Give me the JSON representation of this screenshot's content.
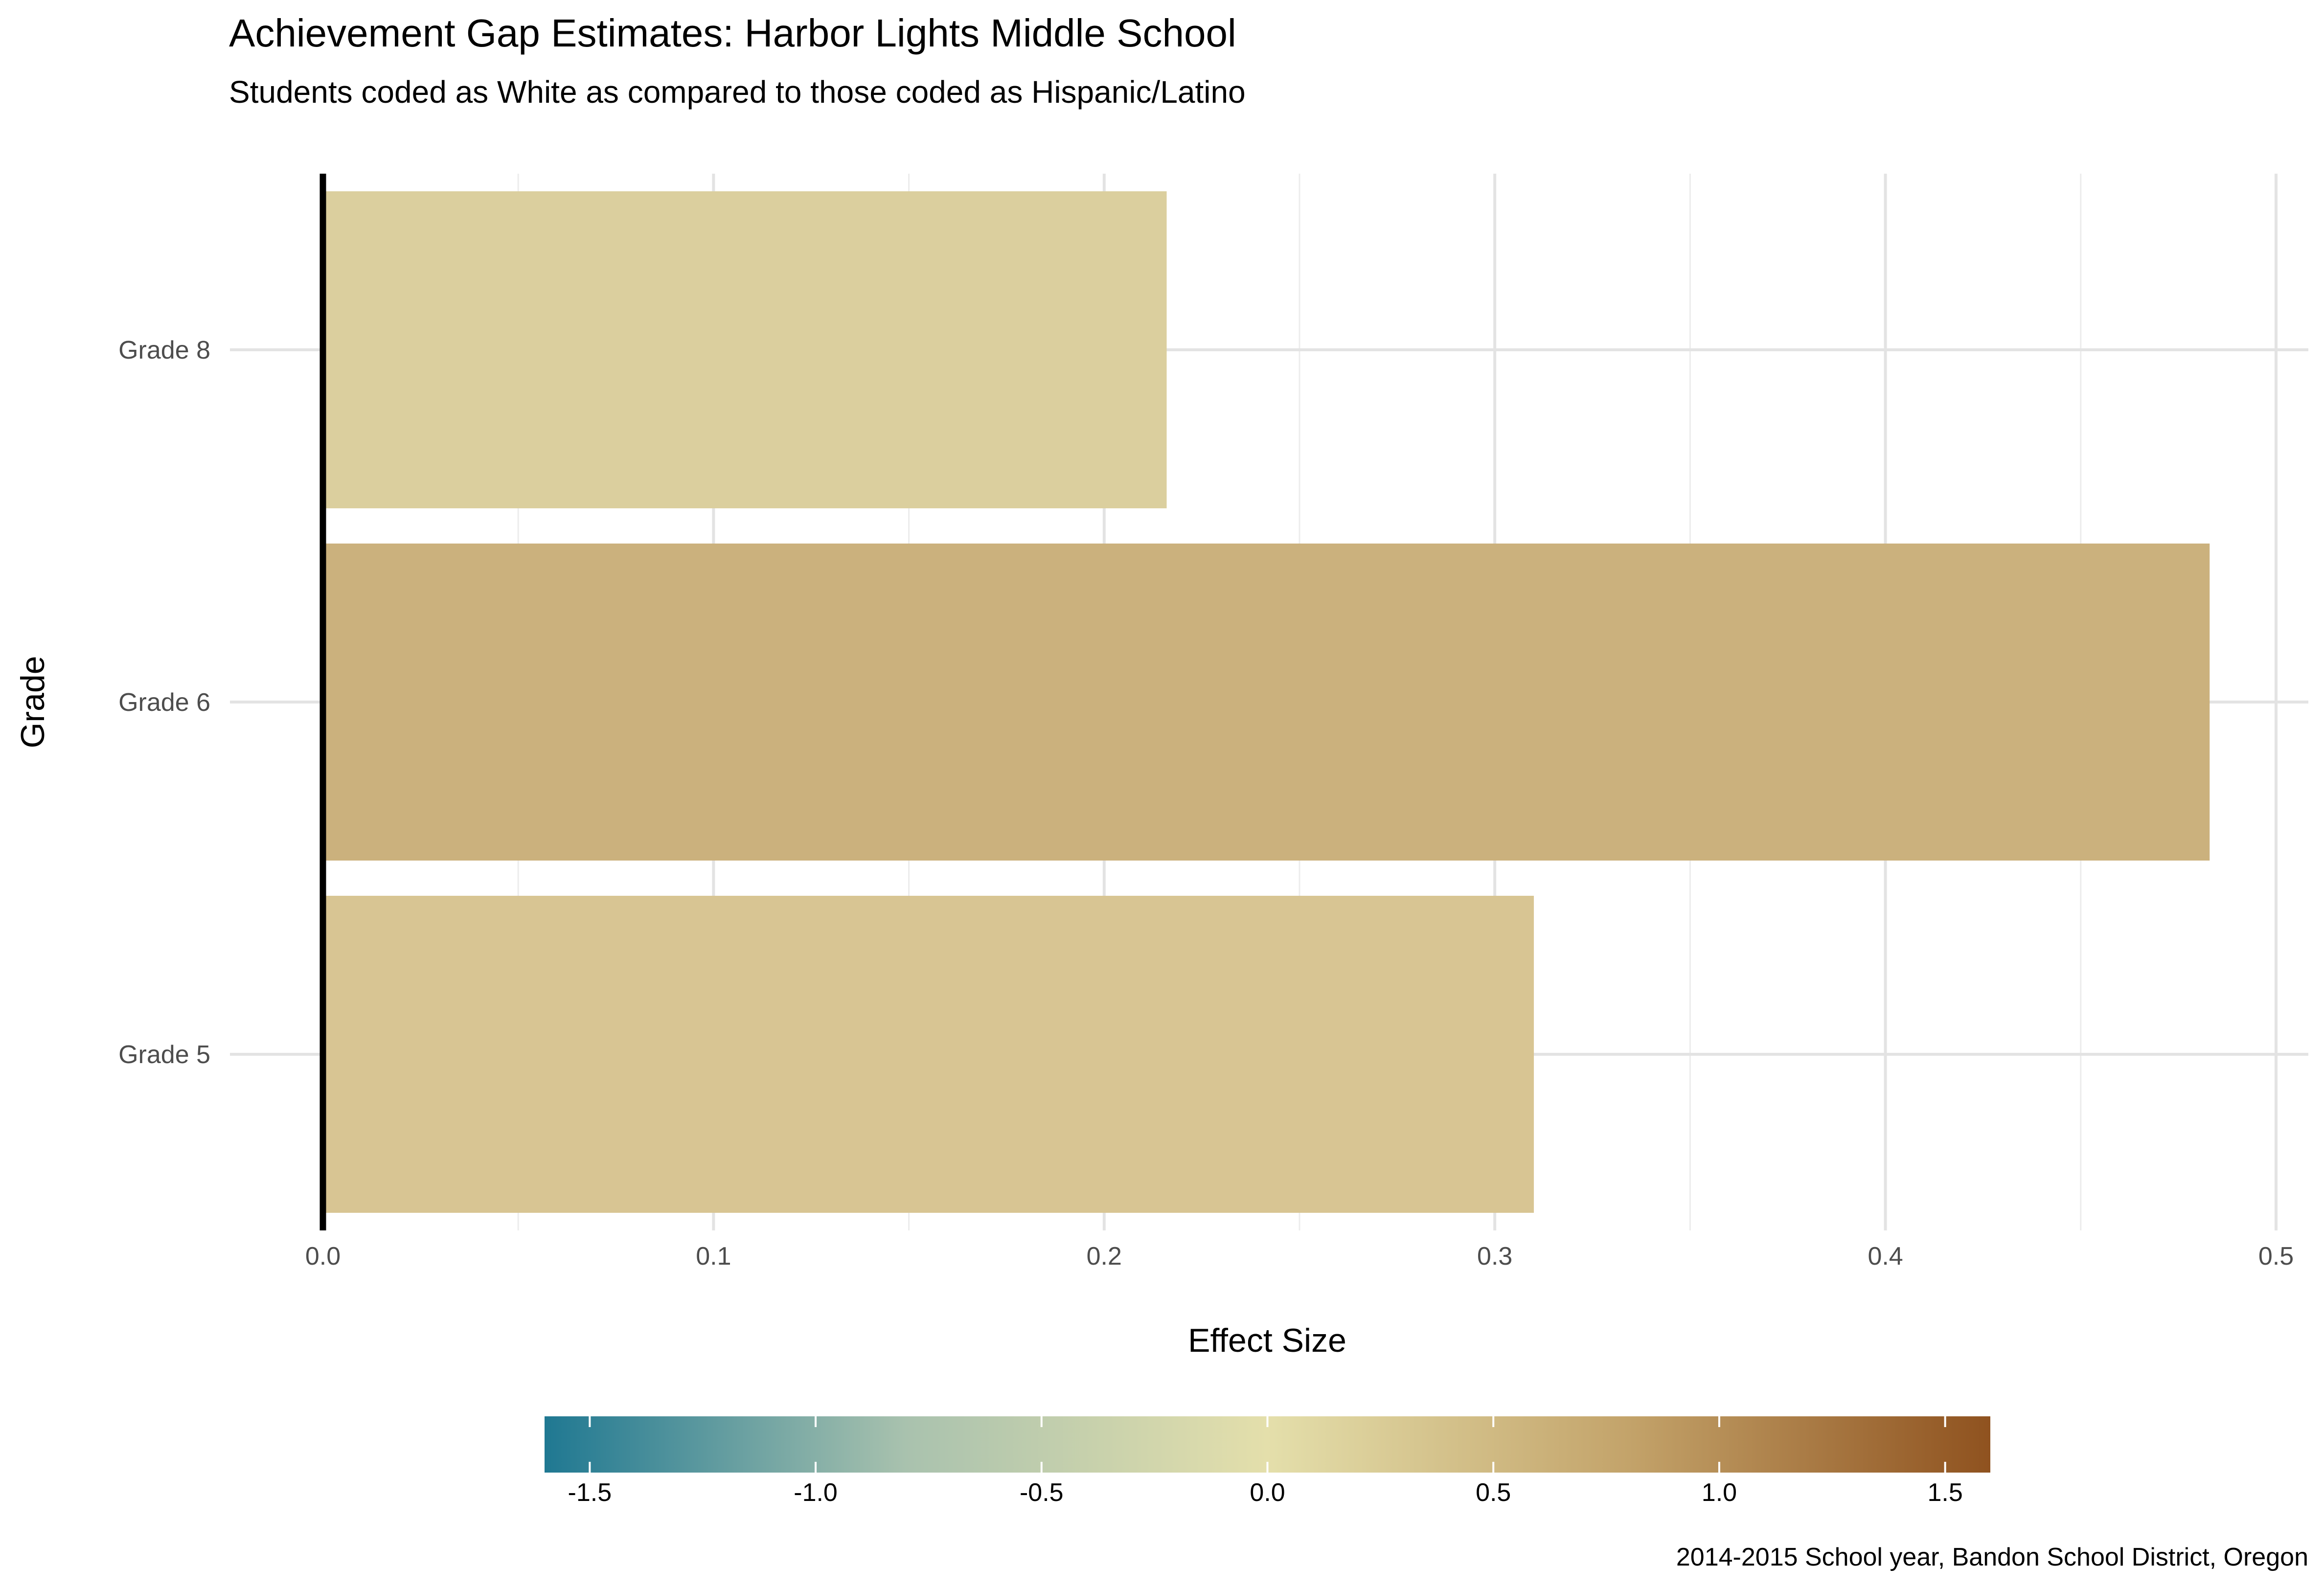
{
  "chart_data": {
    "type": "bar",
    "orientation": "horizontal",
    "title": "Achievement Gap Estimates: Harbor Lights Middle School",
    "subtitle": "Students coded as White as compared to those coded as Hispanic/Latino",
    "xlabel": "Effect Size",
    "ylabel": "Grade",
    "categories": [
      "Grade 5",
      "Grade 6",
      "Grade 8"
    ],
    "values": [
      0.31,
      0.483,
      0.216
    ],
    "xlim": [
      0,
      0.5
    ],
    "x_ticks": [
      "0.0",
      "0.1",
      "0.2",
      "0.3",
      "0.4",
      "0.5"
    ],
    "x_tick_values": [
      0,
      0.1,
      0.2,
      0.3,
      0.4,
      0.5
    ],
    "grid": true,
    "bar_colors": [
      "#d8c593",
      "#cbb17d",
      "#dbcf9e"
    ],
    "zero_line_color": "#000000",
    "legend": {
      "type": "colorbar",
      "placement": "bottom",
      "range": [
        -1.6,
        1.6
      ],
      "tick_values": [
        -1.5,
        -1.0,
        -0.5,
        0.0,
        0.5,
        1.0,
        1.5
      ],
      "tick_labels": [
        "-1.5",
        "-1.0",
        "-0.5",
        "0.0",
        "0.5",
        "1.0",
        "1.5"
      ],
      "colors": [
        "#1f7892",
        "#a9c2ae",
        "#e4dfab",
        "#c3a36a",
        "#8f521f"
      ]
    },
    "caption": "2014-2015 School year, Bandon School District, Oregon"
  }
}
